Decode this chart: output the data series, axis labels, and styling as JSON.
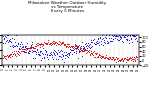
{
  "title": "Milwaukee Weather Outdoor Humidity\nvs Temperature\nEvery 5 Minutes",
  "title_fontsize": 3.0,
  "background_color": "#ffffff",
  "humidity_color": "#0000cc",
  "temperature_color": "#cc0000",
  "ylim_humidity": [
    0,
    100
  ],
  "ylim_temperature": [
    -20,
    110
  ],
  "humidity_yticks": [
    0,
    25,
    50,
    75,
    100
  ],
  "temperature_yticks": [
    -20,
    0,
    20,
    40,
    60,
    80,
    100
  ],
  "dot_size": 0.4,
  "n_points": 288,
  "seed": 7
}
